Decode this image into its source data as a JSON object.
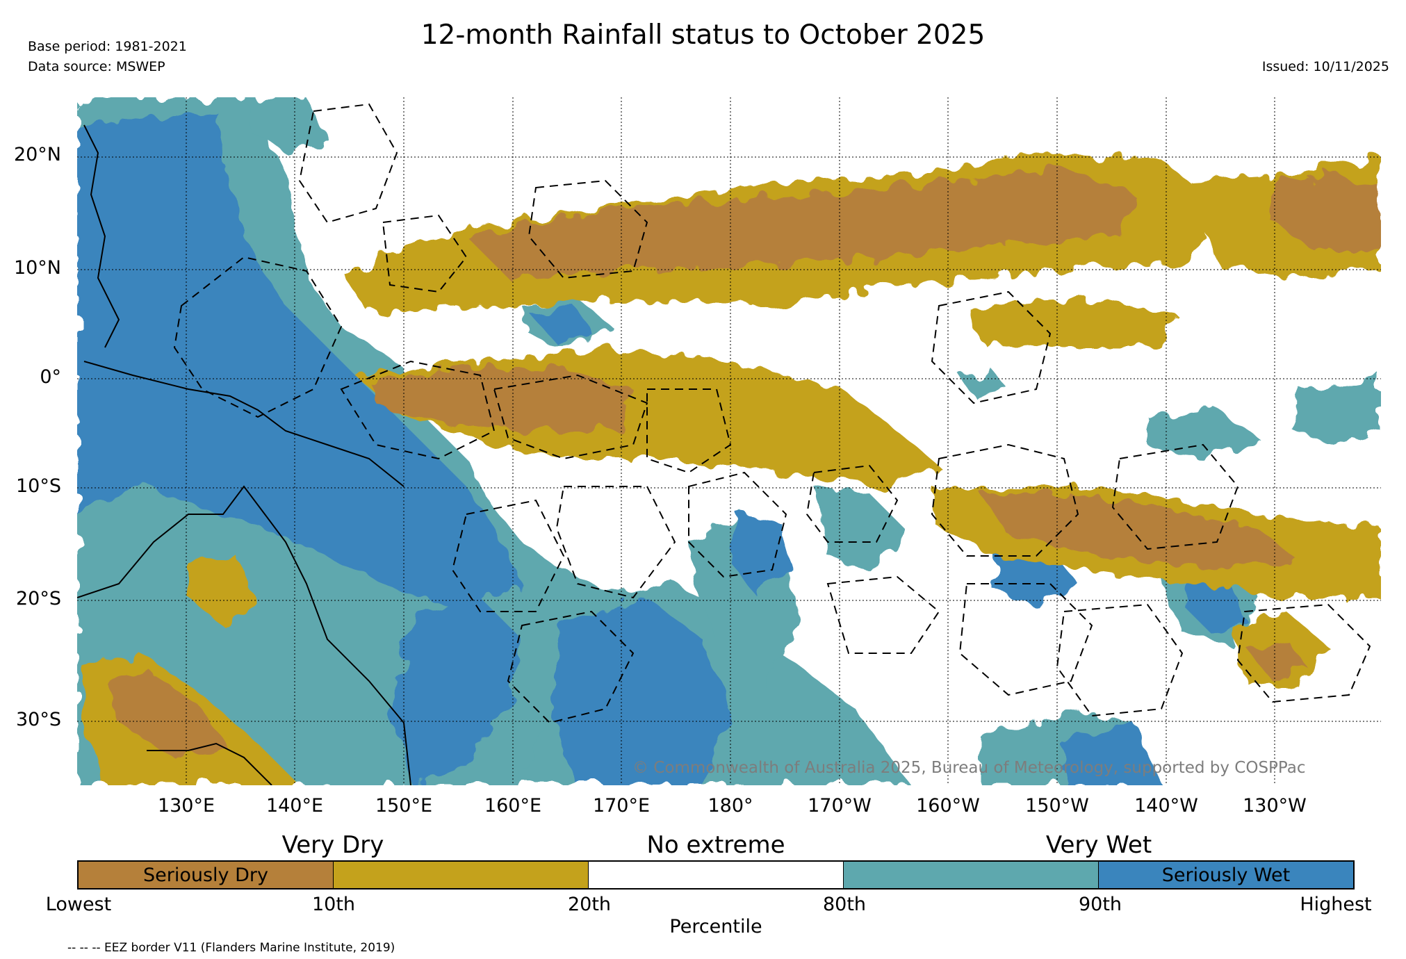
{
  "header": {
    "title": "12-month Rainfall status to October 2025",
    "base_period": "Base period: 1981-2021",
    "data_source": "Data source: MSWEP",
    "issued": "Issued: 10/11/2025"
  },
  "map": {
    "lat_labels": [
      "20°N",
      "10°N",
      "0°",
      "10°S",
      "20°S",
      "30°S"
    ],
    "lon_labels": [
      "130°E",
      "140°E",
      "150°E",
      "160°E",
      "170°E",
      "180°",
      "170°W",
      "160°W",
      "150°W",
      "140°W",
      "130°W"
    ],
    "copyright": "© Commonwealth of Australia 2025, Bureau of Meteorology, supported by COSPPac"
  },
  "legend": {
    "headings": {
      "dry": "Very Dry",
      "none": "No extreme",
      "wet": "Very Wet"
    },
    "segments": [
      {
        "label": "Seriously Dry",
        "color": "#b5803a"
      },
      {
        "label": "",
        "color": "#c4a21c"
      },
      {
        "label": "",
        "color": "#ffffff"
      },
      {
        "label": "",
        "color": "#5ea8ae"
      },
      {
        "label": "Seriously Wet",
        "color": "#3a85bd"
      }
    ],
    "ticks": [
      "Lowest",
      "10th",
      "20th",
      "80th",
      "90th",
      "Highest"
    ],
    "axis_label": "Percentile"
  },
  "footnote": "-- -- -- EEZ border V11 (Flanders Marine Institute, 2019)"
}
